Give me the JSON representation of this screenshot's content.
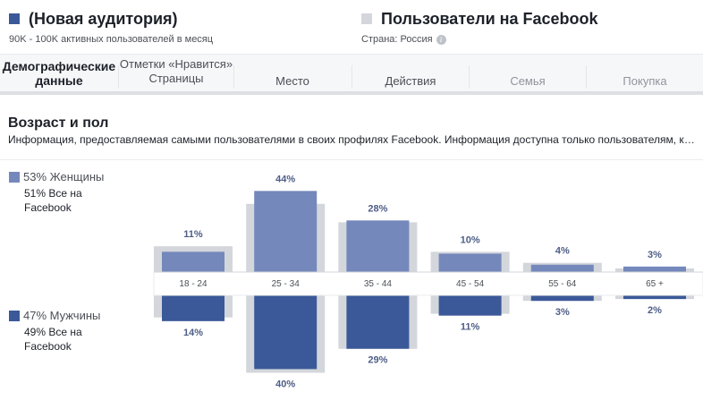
{
  "header": {
    "audience": {
      "title": "(Новая аудитория)",
      "subtitle": "90K - 100K активных пользователей в месяц",
      "color": "#3b5998"
    },
    "benchmark": {
      "title": "Пользователи на Facebook",
      "subtitle": "Страна: Россия",
      "info_icon": "info-icon",
      "color": "#d3d6db"
    }
  },
  "tabs": [
    {
      "label": "Демографические данные",
      "active": true,
      "disabled": false
    },
    {
      "label": "Отметки «Нравится» Страницы",
      "active": false,
      "disabled": false
    },
    {
      "label": "Место",
      "active": false,
      "disabled": false
    },
    {
      "label": "Действия",
      "active": false,
      "disabled": false
    },
    {
      "label": "Семья",
      "active": false,
      "disabled": true
    },
    {
      "label": "Покупка",
      "active": false,
      "disabled": true
    }
  ],
  "section": {
    "title": "Возраст и пол",
    "description": "Информация, предоставляемая самыми пользователями в своих профилях Facebook. Информация доступна только пользователям, которые дали согласие на ее предоставление."
  },
  "legend": {
    "women": {
      "label": "53% Женщины",
      "benchmark": "51% Все на Facebook",
      "color": "#7488bb"
    },
    "men": {
      "label": "47% Мужчины",
      "benchmark": "49% Все на Facebook",
      "color": "#3b5998"
    }
  },
  "chart_data": {
    "type": "bar",
    "categories": [
      "18 - 24",
      "25 - 34",
      "35 - 44",
      "45 - 54",
      "55 - 64",
      "65 +"
    ],
    "series": [
      {
        "name": "Женщины",
        "values": [
          11,
          44,
          28,
          10,
          4,
          3
        ],
        "labels": [
          "11%",
          "44%",
          "28%",
          "10%",
          "4%",
          "3%"
        ],
        "color": "#7488bb"
      },
      {
        "name": "Мужчины",
        "values": [
          14,
          40,
          29,
          11,
          3,
          2
        ],
        "labels": [
          "14%",
          "40%",
          "29%",
          "11%",
          "3%",
          "2%"
        ],
        "color": "#3b5998"
      }
    ],
    "benchmark_women": [
      14,
      37,
      27,
      11,
      5,
      2
    ],
    "benchmark_men": [
      12,
      42,
      29,
      10,
      3,
      2
    ],
    "benchmark_color": "#d3d6db"
  }
}
